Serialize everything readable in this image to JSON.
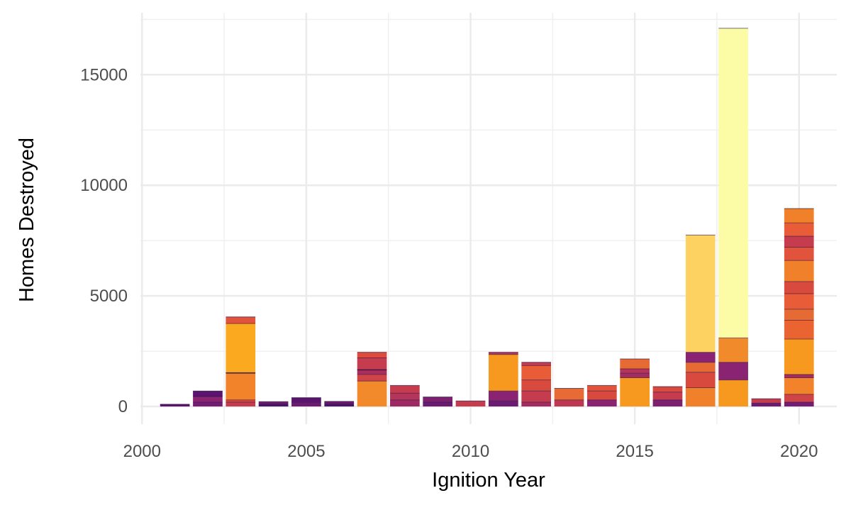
{
  "chart_data": {
    "type": "bar",
    "stacked": true,
    "title": "",
    "xlabel": "Ignition Year",
    "ylabel": "Homes Destroyed",
    "xlim": [
      1999.95,
      2021.15
    ],
    "ylim": [
      -800,
      17800
    ],
    "x_ticks": [
      2000,
      2005,
      2010,
      2015,
      2020
    ],
    "y_ticks": [
      0,
      5000,
      10000,
      15000
    ],
    "grid": true,
    "legend": "none",
    "bars": [
      {
        "year": 2001,
        "total": 100,
        "segments": [
          {
            "value": 100,
            "color": "#5c1470"
          }
        ]
      },
      {
        "year": 2002,
        "total": 700,
        "segments": [
          {
            "value": 200,
            "color": "#751d74"
          },
          {
            "value": 250,
            "color": "#8b2373"
          },
          {
            "value": 250,
            "color": "#5a1470"
          }
        ]
      },
      {
        "year": 2003,
        "total": 4050,
        "segments": [
          {
            "value": 200,
            "color": "#c43c4e"
          },
          {
            "value": 100,
            "color": "#d94a3e"
          },
          {
            "value": 1200,
            "color": "#f2832a"
          },
          {
            "value": 30,
            "color": "#1a0a2e"
          },
          {
            "value": 2220,
            "color": "#fba91f"
          },
          {
            "value": 300,
            "color": "#e1533a"
          }
        ]
      },
      {
        "year": 2004,
        "total": 220,
        "segments": [
          {
            "value": 120,
            "color": "#4a1268"
          },
          {
            "value": 100,
            "color": "#73206f"
          }
        ]
      },
      {
        "year": 2005,
        "total": 400,
        "segments": [
          {
            "value": 200,
            "color": "#6a1b72"
          },
          {
            "value": 200,
            "color": "#5a1470"
          }
        ]
      },
      {
        "year": 2006,
        "total": 230,
        "segments": [
          {
            "value": 120,
            "color": "#4a1268"
          },
          {
            "value": 110,
            "color": "#6d1c71"
          }
        ]
      },
      {
        "year": 2007,
        "total": 2450,
        "segments": [
          {
            "value": 1150,
            "color": "#f2892a"
          },
          {
            "value": 300,
            "color": "#cf4446"
          },
          {
            "value": 200,
            "color": "#a92e5e"
          },
          {
            "value": 20,
            "color": "#1a0a2e"
          },
          {
            "value": 530,
            "color": "#c43c4e"
          },
          {
            "value": 250,
            "color": "#dd4b3d"
          }
        ]
      },
      {
        "year": 2008,
        "total": 950,
        "segments": [
          {
            "value": 300,
            "color": "#9e2a63"
          },
          {
            "value": 300,
            "color": "#b5345a"
          },
          {
            "value": 350,
            "color": "#c43c4e"
          }
        ]
      },
      {
        "year": 2009,
        "total": 430,
        "segments": [
          {
            "value": 200,
            "color": "#6a1b72"
          },
          {
            "value": 230,
            "color": "#7c2070"
          }
        ]
      },
      {
        "year": 2010,
        "total": 250,
        "segments": [
          {
            "value": 250,
            "color": "#c43c4e"
          }
        ]
      },
      {
        "year": 2011,
        "total": 2450,
        "segments": [
          {
            "value": 250,
            "color": "#6a1b72"
          },
          {
            "value": 450,
            "color": "#8b2373"
          },
          {
            "value": 1650,
            "color": "#f7981f"
          },
          {
            "value": 100,
            "color": "#b5345a"
          }
        ]
      },
      {
        "year": 2012,
        "total": 2000,
        "segments": [
          {
            "value": 200,
            "color": "#a22d60"
          },
          {
            "value": 500,
            "color": "#c43c4e"
          },
          {
            "value": 500,
            "color": "#d94a3e"
          },
          {
            "value": 650,
            "color": "#e85d37"
          },
          {
            "value": 150,
            "color": "#c43c4e"
          }
        ]
      },
      {
        "year": 2013,
        "total": 820,
        "segments": [
          {
            "value": 300,
            "color": "#bd3853"
          },
          {
            "value": 520,
            "color": "#e86a34"
          }
        ]
      },
      {
        "year": 2014,
        "total": 950,
        "segments": [
          {
            "value": 300,
            "color": "#8b2373"
          },
          {
            "value": 400,
            "color": "#d94a3e"
          },
          {
            "value": 250,
            "color": "#e1533a"
          }
        ]
      },
      {
        "year": 2015,
        "total": 2150,
        "segments": [
          {
            "value": 1300,
            "color": "#f7981f"
          },
          {
            "value": 200,
            "color": "#a22d60"
          },
          {
            "value": 200,
            "color": "#b5345a"
          },
          {
            "value": 450,
            "color": "#e56a33"
          }
        ]
      },
      {
        "year": 2016,
        "total": 900,
        "segments": [
          {
            "value": 300,
            "color": "#7c2070"
          },
          {
            "value": 350,
            "color": "#c43c4e"
          },
          {
            "value": 250,
            "color": "#d94a3e"
          }
        ]
      },
      {
        "year": 2017,
        "total": 7750,
        "segments": [
          {
            "value": 850,
            "color": "#f08029"
          },
          {
            "value": 700,
            "color": "#d94a3e"
          },
          {
            "value": 450,
            "color": "#e56a33"
          },
          {
            "value": 450,
            "color": "#8b2373"
          },
          {
            "value": 5300,
            "color": "#fed261"
          }
        ]
      },
      {
        "year": 2018,
        "total": 17100,
        "segments": [
          {
            "value": 1200,
            "color": "#f7981f"
          },
          {
            "value": 800,
            "color": "#8b2373"
          },
          {
            "value": 1100,
            "color": "#f08a2a"
          },
          {
            "value": 14000,
            "color": "#fcfca6"
          }
        ]
      },
      {
        "year": 2019,
        "total": 350,
        "segments": [
          {
            "value": 150,
            "color": "#6a1b72"
          },
          {
            "value": 200,
            "color": "#c43c4e"
          }
        ]
      },
      {
        "year": 2020,
        "total": 8950,
        "segments": [
          {
            "value": 200,
            "color": "#751d74"
          },
          {
            "value": 350,
            "color": "#cf4446"
          },
          {
            "value": 750,
            "color": "#f2832a"
          },
          {
            "value": 150,
            "color": "#a22d60"
          },
          {
            "value": 1600,
            "color": "#f7981f"
          },
          {
            "value": 850,
            "color": "#ea6432"
          },
          {
            "value": 500,
            "color": "#e56a33"
          },
          {
            "value": 700,
            "color": "#e85d37"
          },
          {
            "value": 550,
            "color": "#d94a3e"
          },
          {
            "value": 950,
            "color": "#f08029"
          },
          {
            "value": 600,
            "color": "#e1533a"
          },
          {
            "value": 500,
            "color": "#c43c4e"
          },
          {
            "value": 600,
            "color": "#e85d37"
          },
          {
            "value": 650,
            "color": "#f08029"
          }
        ]
      }
    ]
  }
}
